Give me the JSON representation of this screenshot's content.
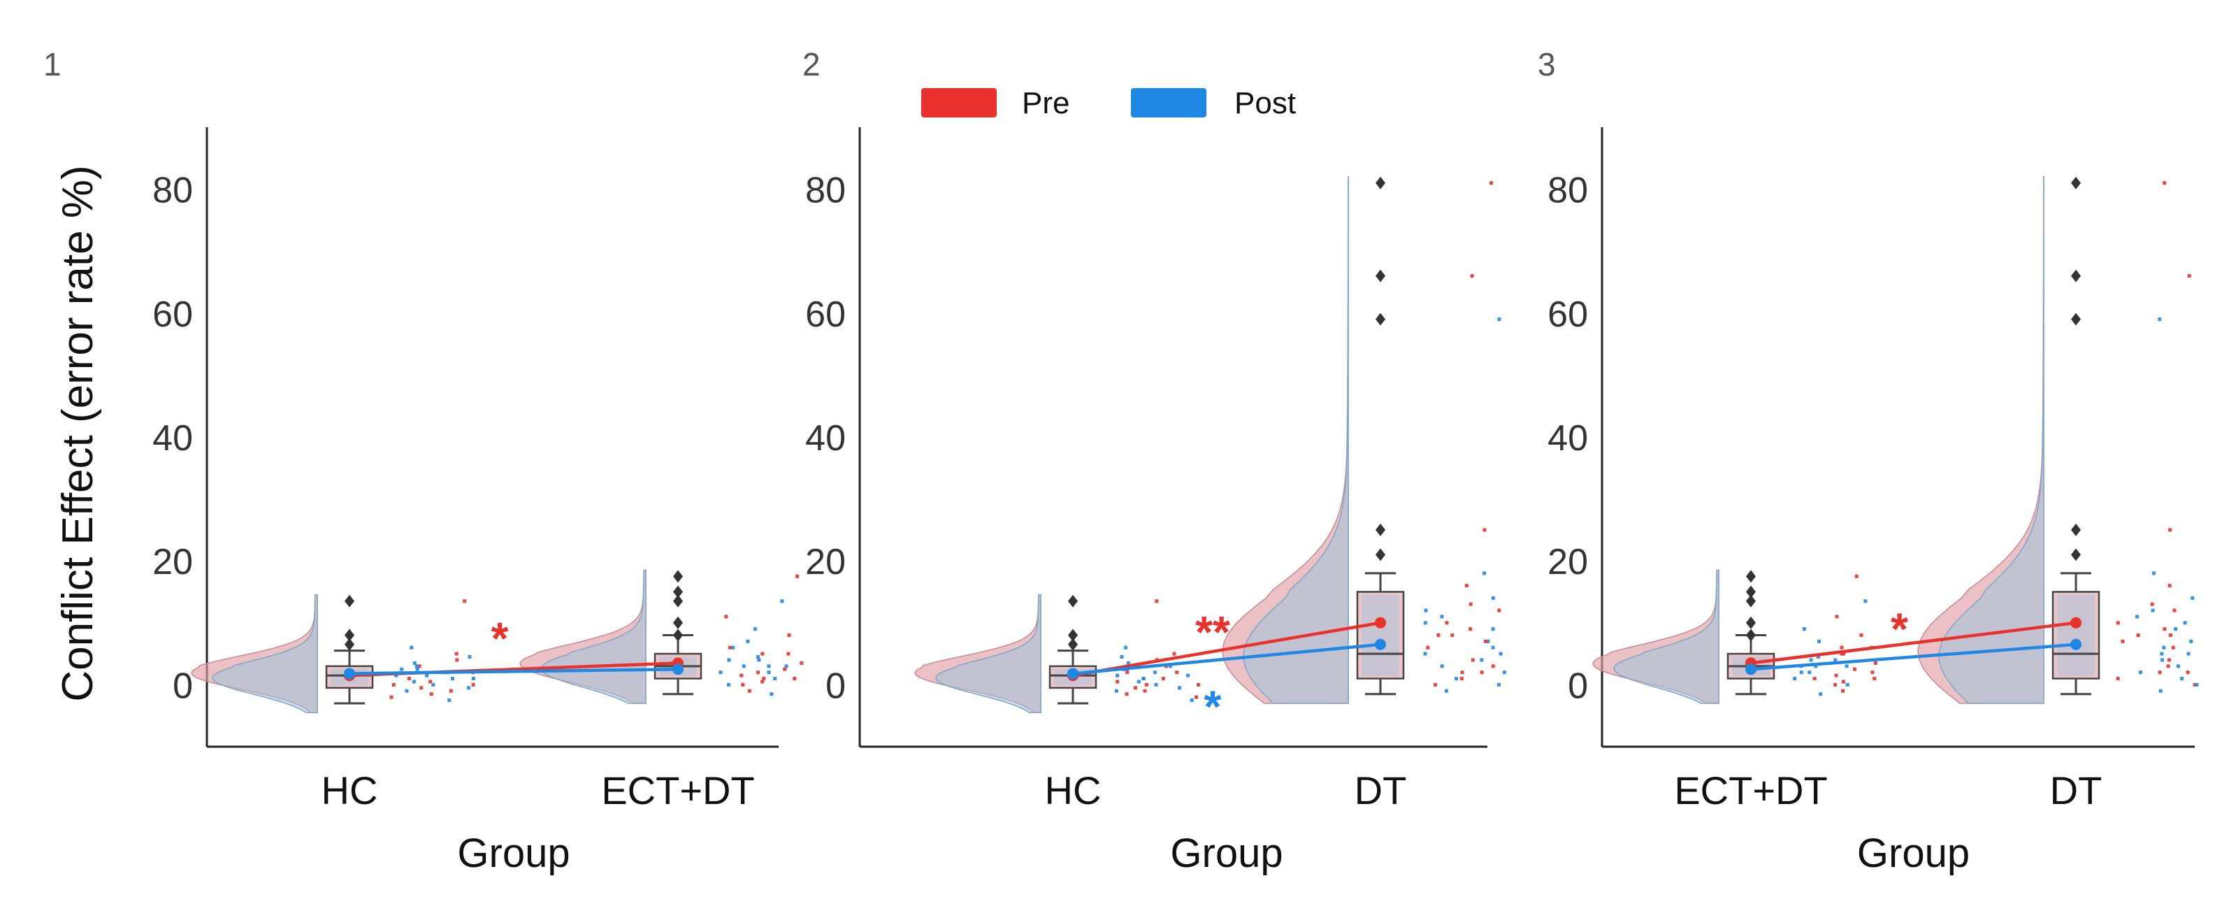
{
  "colors": {
    "pre": "#e8322b",
    "post": "#1f88e5",
    "pre_fill": "#e0a0a6",
    "post_fill": "#9fc2dc",
    "box_fill": "#b8aec4",
    "box_edge": "#444444",
    "axis": "#222222"
  },
  "ylabel": "Conflict Effect (error rate %)",
  "legend": {
    "pre": "Pre",
    "post": "Post"
  },
  "chart_data": [
    {
      "type": "raincloud",
      "panel": "1",
      "xlabel": "Group",
      "ylim": [
        -10,
        90
      ],
      "yticks": [
        0,
        20,
        40,
        60,
        80
      ],
      "categories": [
        "HC",
        "ECT+DT"
      ],
      "series": [
        {
          "name": "Pre",
          "means": [
            1.5,
            3.5
          ]
        },
        {
          "name": "Post",
          "means": [
            1.8,
            2.5
          ]
        }
      ],
      "boxes": [
        {
          "median": 1.5,
          "q1": -0.5,
          "q3": 3,
          "whisker_low": -3,
          "whisker_high": 5.5,
          "outliers": [
            13.5,
            8,
            6.5
          ]
        },
        {
          "median": 3,
          "q1": 1,
          "q3": 5,
          "whisker_low": -1.5,
          "whisker_high": 8,
          "outliers": [
            17.5,
            15,
            13.5,
            10,
            8
          ]
        }
      ],
      "significance": [
        {
          "label": "*",
          "color": "pre",
          "between": [
            0,
            1
          ],
          "y": 7.5
        }
      ],
      "rain_points": [
        [
          [
            -2,
            "pre"
          ],
          [
            -1,
            "post"
          ],
          [
            0,
            "pre"
          ],
          [
            0.5,
            "post"
          ],
          [
            1,
            "pre"
          ],
          [
            1.5,
            "post"
          ],
          [
            2,
            "pre"
          ],
          [
            2.5,
            "post"
          ],
          [
            3,
            "pre"
          ],
          [
            -0.5,
            "post"
          ],
          [
            1,
            "post"
          ],
          [
            4,
            "pre"
          ],
          [
            -1.5,
            "pre"
          ],
          [
            3.5,
            "post"
          ],
          [
            0,
            "post"
          ],
          [
            2,
            "pre"
          ],
          [
            1,
            "post"
          ],
          [
            -2.5,
            "post"
          ],
          [
            5,
            "pre"
          ],
          [
            13.5,
            "pre"
          ],
          [
            6,
            "post"
          ],
          [
            -1,
            "pre"
          ],
          [
            2.5,
            "post"
          ],
          [
            0.5,
            "pre"
          ],
          [
            1.5,
            "post"
          ],
          [
            3,
            "post"
          ],
          [
            -0.5,
            "pre"
          ],
          [
            4.5,
            "post"
          ],
          [
            2,
            "post"
          ],
          [
            0,
            "pre"
          ]
        ],
        [
          [
            17.5,
            "pre"
          ],
          [
            13.5,
            "post"
          ],
          [
            11,
            "pre"
          ],
          [
            9,
            "post"
          ],
          [
            8,
            "pre"
          ],
          [
            6,
            "post"
          ],
          [
            5,
            "pre"
          ],
          [
            4,
            "post"
          ],
          [
            3.5,
            "pre"
          ],
          [
            3,
            "post"
          ],
          [
            2.5,
            "pre"
          ],
          [
            2,
            "post"
          ],
          [
            1.5,
            "pre"
          ],
          [
            1,
            "post"
          ],
          [
            0.5,
            "pre"
          ],
          [
            0,
            "post"
          ],
          [
            -1,
            "pre"
          ],
          [
            -1.5,
            "post"
          ],
          [
            2,
            "pre"
          ],
          [
            4,
            "post"
          ],
          [
            6,
            "pre"
          ],
          [
            3,
            "post"
          ],
          [
            1,
            "pre"
          ],
          [
            7,
            "post"
          ],
          [
            5,
            "pre"
          ],
          [
            2,
            "post"
          ],
          [
            0,
            "pre"
          ],
          [
            3,
            "post"
          ],
          [
            1,
            "pre"
          ],
          [
            4.5,
            "post"
          ]
        ]
      ]
    },
    {
      "type": "raincloud",
      "panel": "2",
      "xlabel": "Group",
      "ylim": [
        -10,
        90
      ],
      "yticks": [
        0,
        20,
        40,
        60,
        80
      ],
      "categories": [
        "HC",
        "DT"
      ],
      "series": [
        {
          "name": "Pre",
          "means": [
            1.5,
            10
          ]
        },
        {
          "name": "Post",
          "means": [
            1.8,
            6.5
          ]
        }
      ],
      "boxes": [
        {
          "median": 1.5,
          "q1": -0.5,
          "q3": 3,
          "whisker_low": -3,
          "whisker_high": 5.5,
          "outliers": [
            13.5,
            8,
            6.5
          ]
        },
        {
          "median": 5,
          "q1": 1,
          "q3": 15,
          "whisker_low": -1.5,
          "whisker_high": 18,
          "outliers": [
            81,
            66,
            59,
            25,
            21
          ]
        }
      ],
      "significance": [
        {
          "label": "**",
          "color": "pre",
          "between": [
            0,
            1
          ],
          "y": 8.5
        },
        {
          "label": "*",
          "color": "post",
          "between": [
            0,
            1
          ],
          "y": -3.5
        }
      ],
      "rain_points": [
        [
          [
            -2,
            "pre"
          ],
          [
            -1,
            "post"
          ],
          [
            0,
            "pre"
          ],
          [
            0.5,
            "post"
          ],
          [
            1,
            "pre"
          ],
          [
            1.5,
            "post"
          ],
          [
            2,
            "pre"
          ],
          [
            2.5,
            "post"
          ],
          [
            3,
            "pre"
          ],
          [
            -0.5,
            "post"
          ],
          [
            1,
            "post"
          ],
          [
            4,
            "pre"
          ],
          [
            -1.5,
            "pre"
          ],
          [
            3.5,
            "post"
          ],
          [
            0,
            "post"
          ],
          [
            2,
            "pre"
          ],
          [
            1,
            "post"
          ],
          [
            -2.5,
            "post"
          ],
          [
            5,
            "pre"
          ],
          [
            13.5,
            "pre"
          ],
          [
            6,
            "post"
          ],
          [
            -1,
            "pre"
          ],
          [
            2.5,
            "post"
          ],
          [
            0.5,
            "pre"
          ],
          [
            1.5,
            "post"
          ],
          [
            3,
            "post"
          ],
          [
            -0.5,
            "pre"
          ],
          [
            4.5,
            "post"
          ],
          [
            2,
            "post"
          ],
          [
            0,
            "pre"
          ]
        ],
        [
          [
            81,
            "pre"
          ],
          [
            66,
            "pre"
          ],
          [
            59,
            "post"
          ],
          [
            25,
            "pre"
          ],
          [
            18,
            "post"
          ],
          [
            16,
            "pre"
          ],
          [
            14,
            "post"
          ],
          [
            12,
            "pre"
          ],
          [
            11,
            "post"
          ],
          [
            10,
            "pre"
          ],
          [
            9,
            "post"
          ],
          [
            8,
            "pre"
          ],
          [
            7,
            "post"
          ],
          [
            6,
            "pre"
          ],
          [
            5,
            "post"
          ],
          [
            4,
            "pre"
          ],
          [
            3,
            "post"
          ],
          [
            2,
            "pre"
          ],
          [
            1,
            "post"
          ],
          [
            0,
            "pre"
          ],
          [
            -1,
            "post"
          ],
          [
            13,
            "pre"
          ],
          [
            6,
            "post"
          ],
          [
            3,
            "pre"
          ],
          [
            2,
            "post"
          ],
          [
            8,
            "pre"
          ],
          [
            5,
            "post"
          ],
          [
            10,
            "post"
          ],
          [
            1,
            "pre"
          ],
          [
            4,
            "post"
          ],
          [
            7,
            "pre"
          ],
          [
            0,
            "post"
          ],
          [
            12,
            "post"
          ],
          [
            2,
            "pre"
          ],
          [
            9,
            "pre"
          ]
        ]
      ]
    },
    {
      "type": "raincloud",
      "panel": "3",
      "xlabel": "Group",
      "ylim": [
        -10,
        90
      ],
      "yticks": [
        0,
        20,
        40,
        60,
        80
      ],
      "categories": [
        "ECT+DT",
        "DT"
      ],
      "series": [
        {
          "name": "Pre",
          "means": [
            3.5,
            10
          ]
        },
        {
          "name": "Post",
          "means": [
            2.5,
            6.5
          ]
        }
      ],
      "boxes": [
        {
          "median": 3,
          "q1": 1,
          "q3": 5,
          "whisker_low": -1.5,
          "whisker_high": 8,
          "outliers": [
            17.5,
            15,
            13.5,
            10,
            8
          ]
        },
        {
          "median": 5,
          "q1": 1,
          "q3": 15,
          "whisker_low": -1.5,
          "whisker_high": 18,
          "outliers": [
            81,
            66,
            59,
            25,
            21
          ]
        }
      ],
      "significance": [
        {
          "label": "*",
          "color": "pre",
          "between": [
            0,
            1
          ],
          "y": 9
        }
      ],
      "rain_points": [
        [
          [
            17.5,
            "pre"
          ],
          [
            13.5,
            "post"
          ],
          [
            11,
            "pre"
          ],
          [
            9,
            "post"
          ],
          [
            8,
            "pre"
          ],
          [
            6,
            "post"
          ],
          [
            5,
            "pre"
          ],
          [
            4,
            "post"
          ],
          [
            3.5,
            "pre"
          ],
          [
            3,
            "post"
          ],
          [
            2.5,
            "pre"
          ],
          [
            2,
            "post"
          ],
          [
            1.5,
            "pre"
          ],
          [
            1,
            "post"
          ],
          [
            0.5,
            "pre"
          ],
          [
            0,
            "post"
          ],
          [
            -1,
            "pre"
          ],
          [
            -1.5,
            "post"
          ],
          [
            2,
            "pre"
          ],
          [
            4,
            "post"
          ],
          [
            6,
            "pre"
          ],
          [
            3,
            "post"
          ],
          [
            1,
            "pre"
          ],
          [
            7,
            "post"
          ],
          [
            5,
            "pre"
          ],
          [
            2,
            "post"
          ],
          [
            0,
            "pre"
          ],
          [
            3,
            "post"
          ],
          [
            1,
            "pre"
          ],
          [
            4.5,
            "post"
          ]
        ],
        [
          [
            81,
            "pre"
          ],
          [
            66,
            "pre"
          ],
          [
            59,
            "post"
          ],
          [
            25,
            "pre"
          ],
          [
            18,
            "post"
          ],
          [
            16,
            "pre"
          ],
          [
            14,
            "post"
          ],
          [
            12,
            "pre"
          ],
          [
            11,
            "post"
          ],
          [
            10,
            "pre"
          ],
          [
            9,
            "post"
          ],
          [
            8,
            "pre"
          ],
          [
            7,
            "post"
          ],
          [
            6,
            "pre"
          ],
          [
            5,
            "post"
          ],
          [
            4,
            "pre"
          ],
          [
            3,
            "post"
          ],
          [
            2,
            "pre"
          ],
          [
            1,
            "post"
          ],
          [
            0,
            "pre"
          ],
          [
            -1,
            "post"
          ],
          [
            13,
            "pre"
          ],
          [
            6,
            "post"
          ],
          [
            3,
            "pre"
          ],
          [
            2,
            "post"
          ],
          [
            8,
            "pre"
          ],
          [
            5,
            "post"
          ],
          [
            10,
            "post"
          ],
          [
            1,
            "pre"
          ],
          [
            4,
            "post"
          ],
          [
            7,
            "pre"
          ],
          [
            0,
            "post"
          ],
          [
            12,
            "post"
          ],
          [
            2,
            "pre"
          ],
          [
            9,
            "pre"
          ]
        ]
      ]
    }
  ]
}
